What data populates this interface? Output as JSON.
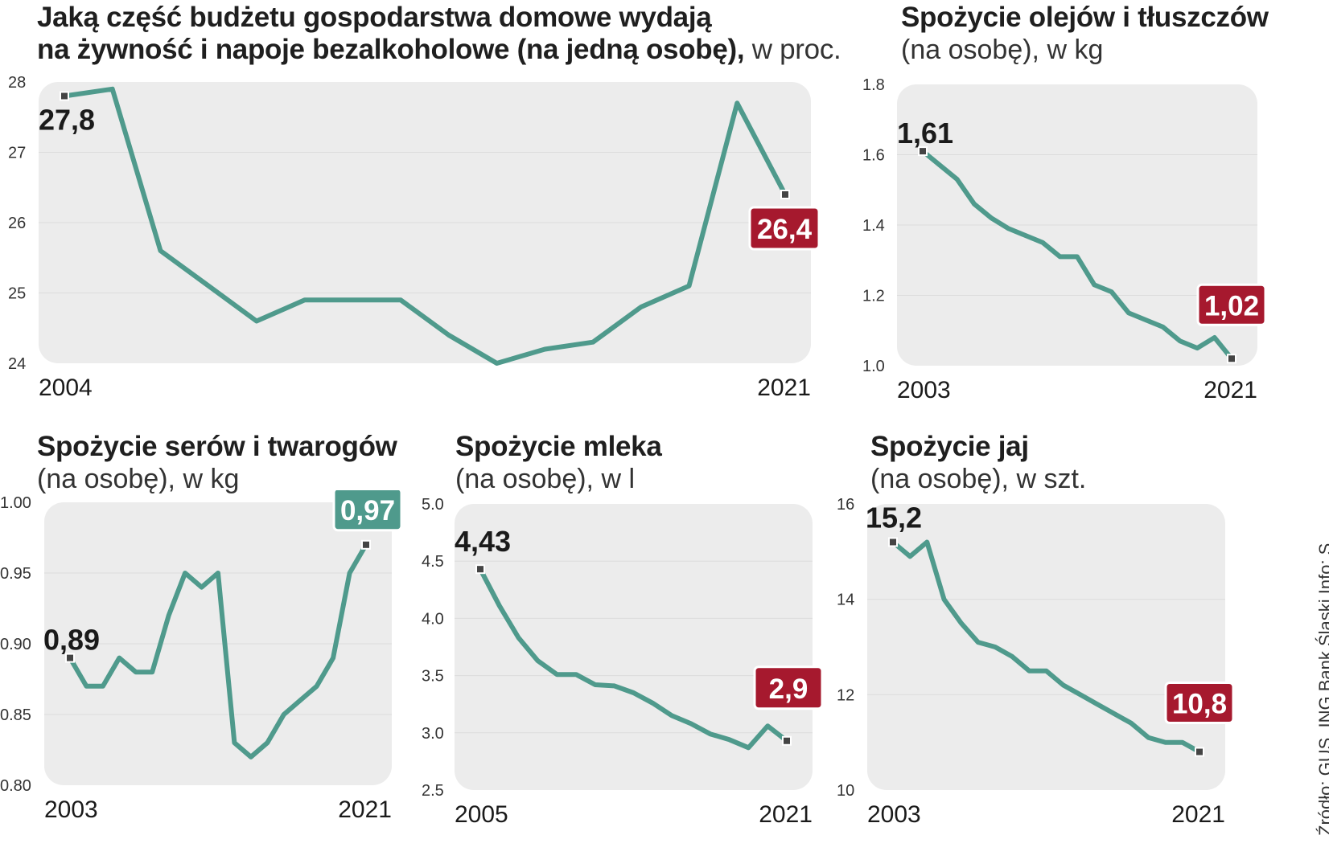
{
  "chart_data": [
    {
      "id": "budzet",
      "type": "line",
      "title": "Jaką część budżetu gospodarstwa domowe wydają",
      "title2": "na żywność i napoje bezalkoholowe  (na jedną osobę),",
      "unit": " w proc.",
      "x_start_label": "2004",
      "x_end_label": "2021",
      "ylim": [
        24,
        28
      ],
      "yticks": [
        "24",
        "25",
        "26",
        "27",
        "28"
      ],
      "values": [
        27.8,
        27.9,
        25.6,
        25.1,
        24.6,
        24.9,
        24.9,
        24.9,
        24.4,
        24.0,
        24.2,
        24.3,
        24.8,
        25.1,
        27.7,
        26.4
      ],
      "start_label": "27,8",
      "end_label": "26,4",
      "end_color": "#a6192e",
      "line_color": "#4f9a8c"
    },
    {
      "id": "oleje",
      "type": "line",
      "title": "Spożycie olejów i tłuszczów",
      "subtitle": "(na osobę), w kg",
      "x_start_label": "2003",
      "x_end_label": "2021",
      "ylim": [
        1.0,
        1.8
      ],
      "yticks": [
        "1.0",
        "1.2",
        "1.4",
        "1.6",
        "1.8"
      ],
      "values": [
        1.61,
        1.57,
        1.53,
        1.46,
        1.42,
        1.39,
        1.37,
        1.35,
        1.31,
        1.31,
        1.23,
        1.21,
        1.15,
        1.13,
        1.11,
        1.07,
        1.05,
        1.08,
        1.02
      ],
      "start_label": "1,61",
      "end_label": "1,02",
      "end_color": "#a6192e",
      "line_color": "#4f9a8c"
    },
    {
      "id": "sery",
      "type": "line",
      "title": "Spożycie serów i twarogów",
      "subtitle": "(na osobę), w kg",
      "x_start_label": "2003",
      "x_end_label": "2021",
      "ylim": [
        0.8,
        1.0
      ],
      "yticks": [
        "0.80",
        "0.85",
        "0.90",
        "0.95",
        "1.00"
      ],
      "values": [
        0.89,
        0.87,
        0.87,
        0.89,
        0.88,
        0.88,
        0.92,
        0.95,
        0.94,
        0.95,
        0.83,
        0.82,
        0.83,
        0.85,
        0.86,
        0.87,
        0.89,
        0.95,
        0.97
      ],
      "start_label": "0,89",
      "end_label": "0,97",
      "end_color": "#4f9a8c",
      "line_color": "#4f9a8c"
    },
    {
      "id": "mleko",
      "type": "line",
      "title": "Spożycie mleka",
      "subtitle": "(na osobę), w l",
      "x_start_label": "2005",
      "x_end_label": "2021",
      "ylim": [
        2.5,
        5.0
      ],
      "yticks": [
        "2.5",
        "3.0",
        "3.5",
        "4.0",
        "4.5",
        "5.0"
      ],
      "values": [
        4.43,
        4.11,
        3.83,
        3.63,
        3.51,
        3.51,
        3.42,
        3.41,
        3.35,
        3.26,
        3.15,
        3.08,
        2.99,
        2.94,
        2.87,
        3.06,
        2.93
      ],
      "start_label": "4,43",
      "end_label": "2,9",
      "end_color": "#a6192e",
      "line_color": "#4f9a8c"
    },
    {
      "id": "jaja",
      "type": "line",
      "title": "Spożycie jaj",
      "subtitle": "(na osobę), w szt.",
      "x_start_label": "2003",
      "x_end_label": "2021",
      "ylim": [
        10,
        16
      ],
      "yticks": [
        "10",
        "12",
        "14",
        "16"
      ],
      "values": [
        15.2,
        14.9,
        15.2,
        14.0,
        13.5,
        13.1,
        13.0,
        12.8,
        12.5,
        12.5,
        12.2,
        12.0,
        11.8,
        11.6,
        11.4,
        11.1,
        11.0,
        11.0,
        10.8
      ],
      "start_label": "15,2",
      "end_label": "10,8",
      "end_color": "#a6192e",
      "line_color": "#4f9a8c"
    }
  ],
  "source": "Źródło: GUS, ING Bank Śląski   Info: S"
}
